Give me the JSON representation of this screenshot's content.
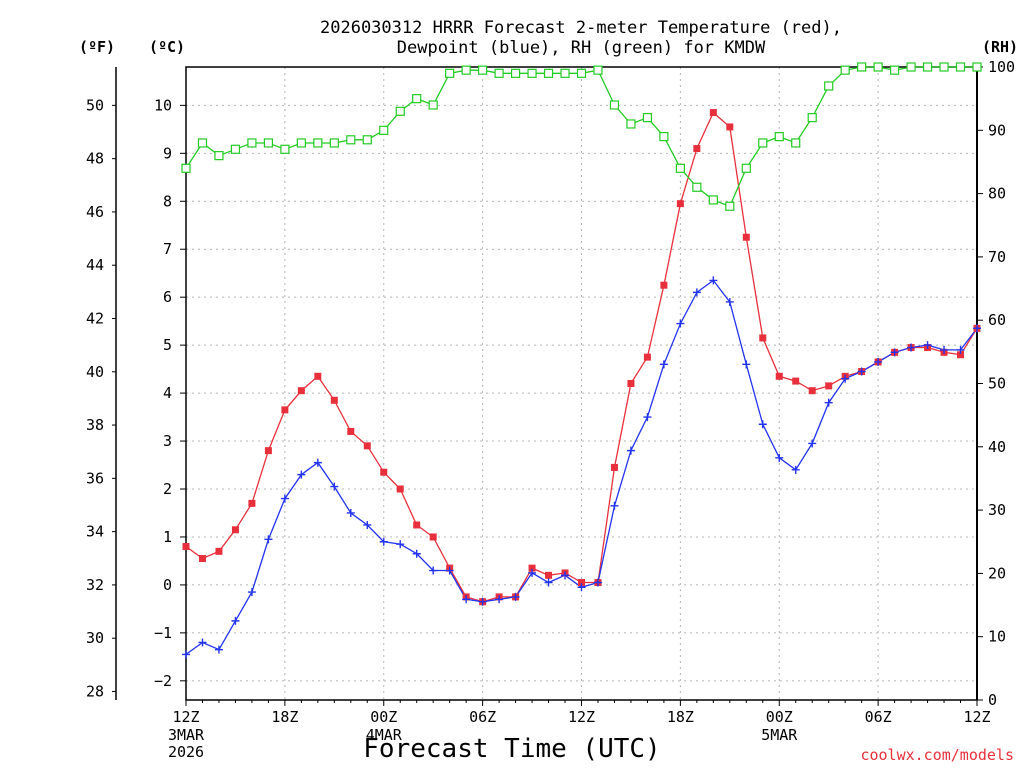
{
  "chart_data": {
    "type": "line",
    "title_lines": [
      "2026030312 HRRR Forecast 2-meter Temperature (red),",
      "Dewpoint (blue), RH (green) for KMDW"
    ],
    "xlabel": "Forecast Time (UTC)",
    "credit": "coolwx.com/models",
    "left_f_label": "(ºF)",
    "left_c_label": "(ºC)",
    "right_label": "(RH)",
    "x_start_label": "12Z 3MAR 2026",
    "x_hours_range": [
      0,
      48
    ],
    "x_ticks": [
      {
        "hour": 0,
        "label": "12Z",
        "sub": [
          "3MAR",
          "2026"
        ]
      },
      {
        "hour": 6,
        "label": "18Z",
        "sub": []
      },
      {
        "hour": 12,
        "label": "00Z",
        "sub": [
          "4MAR"
        ]
      },
      {
        "hour": 18,
        "label": "06Z",
        "sub": []
      },
      {
        "hour": 24,
        "label": "12Z",
        "sub": []
      },
      {
        "hour": 30,
        "label": "18Z",
        "sub": []
      },
      {
        "hour": 36,
        "label": "00Z",
        "sub": [
          "5MAR"
        ]
      },
      {
        "hour": 42,
        "label": "06Z",
        "sub": []
      },
      {
        "hour": 48,
        "label": "12Z",
        "sub": []
      }
    ],
    "y_celsius_range": [
      -2.4,
      10.8
    ],
    "y_celsius_ticks": [
      -2,
      -1,
      0,
      1,
      2,
      3,
      4,
      5,
      6,
      7,
      8,
      9,
      10
    ],
    "y_fahrenheit_ticks": [
      28,
      30,
      32,
      34,
      36,
      38,
      40,
      42,
      44,
      46,
      48,
      50
    ],
    "y_rh_range": [
      0,
      100
    ],
    "y_rh_ticks": [
      0,
      10,
      20,
      30,
      40,
      50,
      60,
      70,
      80,
      90,
      100
    ],
    "grid": true,
    "series": [
      {
        "name": "Temperature",
        "axis": "celsius",
        "color": "#e8303c",
        "marker": "filled-square",
        "values": [
          0.8,
          0.55,
          0.7,
          1.15,
          1.7,
          2.8,
          3.65,
          4.05,
          4.35,
          3.85,
          3.2,
          2.9,
          2.35,
          2.0,
          1.25,
          1.0,
          0.35,
          -0.25,
          -0.35,
          -0.25,
          -0.25,
          0.35,
          0.2,
          0.25,
          0.05,
          0.05,
          2.45,
          4.2,
          4.75,
          6.25,
          7.95,
          9.1,
          9.85,
          9.55,
          7.25,
          5.15,
          4.35,
          4.25,
          4.05,
          4.15,
          4.35,
          4.45,
          4.65,
          4.85,
          4.95,
          4.95,
          4.85,
          4.8,
          5.35
        ]
      },
      {
        "name": "Dewpoint",
        "axis": "celsius",
        "color": "#2233ee",
        "marker": "plus",
        "values": [
          -1.45,
          -1.2,
          -1.35,
          -0.75,
          -0.15,
          0.95,
          1.8,
          2.3,
          2.55,
          2.05,
          1.5,
          1.25,
          0.9,
          0.85,
          0.65,
          0.3,
          0.3,
          -0.3,
          -0.35,
          -0.3,
          -0.25,
          0.25,
          0.05,
          0.2,
          -0.05,
          0.05,
          1.65,
          2.8,
          3.5,
          4.6,
          5.45,
          6.1,
          6.35,
          5.9,
          4.6,
          3.35,
          2.65,
          2.4,
          2.95,
          3.8,
          4.3,
          4.45,
          4.65,
          4.85,
          4.95,
          5.0,
          4.9,
          4.9,
          5.35
        ]
      },
      {
        "name": "RH",
        "axis": "rh",
        "color": "#22cc22",
        "marker": "open-square",
        "values": [
          84,
          88,
          86,
          87,
          88,
          88,
          87,
          88,
          88,
          88,
          88.5,
          88.5,
          90,
          93,
          95,
          94,
          99,
          99.5,
          99.5,
          99,
          99,
          99,
          99,
          99,
          99,
          99.5,
          94,
          91,
          92,
          89,
          84,
          81,
          79,
          78,
          84,
          88,
          89,
          88,
          92,
          97,
          99.5,
          100,
          100,
          99.5,
          100,
          100,
          100,
          100,
          100
        ]
      }
    ]
  }
}
